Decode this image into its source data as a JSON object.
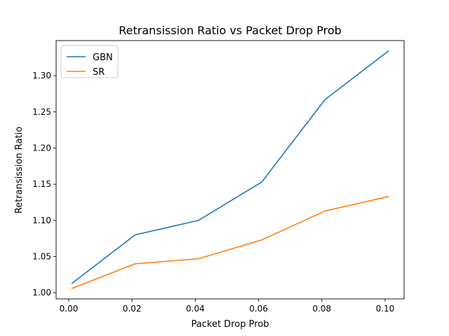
{
  "chart_data": {
    "type": "line",
    "title": "Retransission Ratio vs Packet Drop Prob",
    "xlabel": "Packet Drop Prob",
    "ylabel": "Retransission Ratio",
    "x": [
      0.001,
      0.021,
      0.041,
      0.061,
      0.081,
      0.101
    ],
    "xlim": [
      -0.004,
      0.106
    ],
    "ylim": [
      0.9915,
      1.3485
    ],
    "xticks": [
      0.0,
      0.02,
      0.04,
      0.06,
      0.08,
      0.1
    ],
    "xtick_labels": [
      "0.00",
      "0.02",
      "0.04",
      "0.06",
      "0.08",
      "0.10"
    ],
    "yticks": [
      1.0,
      1.05,
      1.1,
      1.15,
      1.2,
      1.25,
      1.3
    ],
    "ytick_labels": [
      "1.00",
      "1.05",
      "1.10",
      "1.15",
      "1.20",
      "1.25",
      "1.30"
    ],
    "grid": false,
    "legend": "top-left",
    "series": [
      {
        "name": "GBN",
        "color": "#1f77b4",
        "values": [
          1.013,
          1.08,
          1.1,
          1.153,
          1.267,
          1.334
        ]
      },
      {
        "name": "SR",
        "color": "#ff7f0e",
        "values": [
          1.006,
          1.04,
          1.047,
          1.073,
          1.113,
          1.133
        ]
      }
    ]
  }
}
